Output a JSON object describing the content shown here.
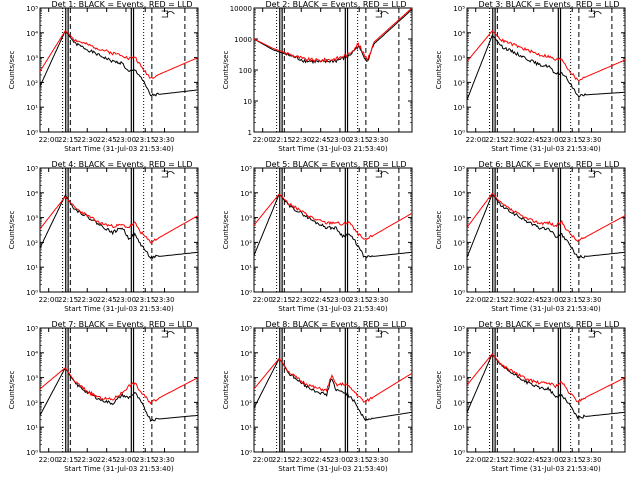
{
  "chart_data": [
    {
      "type": "line",
      "title": "Det 1: BLACK = Events, RED = LLD",
      "ylabel": "Counts/sec",
      "xlabel": "Start Time (31-Jul-03 21:53:40)",
      "x_ticks": [
        "22:00",
        "22:15",
        "22:30",
        "22:45",
        "23:00",
        "23:15",
        "23:30"
      ],
      "y_ticks": [
        "10⁰",
        "10¹",
        "10²",
        "10³",
        "10⁴",
        "10⁵"
      ],
      "ylim": [
        1,
        100000
      ],
      "series": [
        {
          "name": "Events",
          "color": "#000000",
          "shape": "a",
          "level": [
            70,
            12000,
            3800,
            2100,
            1200,
            700,
            600,
            260,
            320,
            160,
            30,
            50
          ]
        },
        {
          "name": "LLD",
          "color": "#ff0000",
          "shape": "a",
          "level": [
            280,
            12000,
            5200,
            3300,
            2200,
            1500,
            1300,
            900,
            1100,
            430,
            150,
            1000
          ]
        }
      ]
    },
    {
      "type": "line",
      "title": "Det 2: BLACK = Events, RED = LLD",
      "ylabel": "Counts/sec",
      "xlabel": "Start Time (31-Jul-03 21:53:40)",
      "x_ticks": [
        "22:00",
        "22:15",
        "22:30",
        "22:45",
        "23:00",
        "23:15",
        "23:30"
      ],
      "y_ticks": [
        "1",
        "10",
        "100",
        "1000",
        "10000"
      ],
      "ylim": [
        1,
        10000
      ],
      "series": [
        {
          "name": "Events",
          "color": "#000000",
          "shape": "b",
          "level": [
            1000,
            450,
            300,
            200,
            180,
            200,
            280,
            600,
            300,
            200,
            700,
            9000
          ]
        },
        {
          "name": "LLD",
          "color": "#ff0000",
          "shape": "b",
          "level": [
            1000,
            500,
            330,
            220,
            200,
            230,
            320,
            700,
            350,
            230,
            800,
            10000
          ]
        }
      ]
    },
    {
      "type": "line",
      "title": "Det 3: BLACK = Events, RED = LLD",
      "ylabel": "Counts/sec",
      "xlabel": "Start Time (31-Jul-03 21:53:40)",
      "x_ticks": [
        "22:00",
        "22:15",
        "22:30",
        "22:45",
        "23:00",
        "23:15",
        "23:30"
      ],
      "y_ticks": [
        "10⁰",
        "10¹",
        "10²",
        "10³",
        "10⁴",
        "10⁵"
      ],
      "ylim": [
        1,
        100000
      ],
      "series": [
        {
          "name": "Events",
          "color": "#000000",
          "shape": "a",
          "level": [
            20,
            8000,
            2800,
            1600,
            900,
            500,
            450,
            200,
            250,
            120,
            30,
            40
          ]
        },
        {
          "name": "LLD",
          "color": "#ff0000",
          "shape": "a",
          "level": [
            700,
            12000,
            5000,
            3200,
            2000,
            1300,
            1100,
            800,
            900,
            350,
            120,
            800
          ]
        }
      ]
    },
    {
      "type": "line",
      "title": "Det 4: BLACK = Events, RED = LLD",
      "ylabel": "Counts/sec",
      "xlabel": "Start Time (31-Jul-03 21:53:40)",
      "x_ticks": [
        "22:00",
        "22:15",
        "22:30",
        "22:45",
        "23:00",
        "23:15",
        "23:30"
      ],
      "y_ticks": [
        "10⁰",
        "10¹",
        "10²",
        "10³",
        "10⁴",
        "10⁵"
      ],
      "ylim": [
        1,
        100000
      ],
      "series": [
        {
          "name": "Events",
          "color": "#000000",
          "shape": "a",
          "level": [
            60,
            8000,
            2200,
            1100,
            500,
            250,
            400,
            150,
            200,
            80,
            25,
            40
          ]
        },
        {
          "name": "LLD",
          "color": "#ff0000",
          "shape": "a",
          "level": [
            350,
            7000,
            2500,
            1200,
            600,
            450,
            500,
            400,
            600,
            250,
            100,
            1200
          ]
        }
      ]
    },
    {
      "type": "line",
      "title": "Det 5: BLACK = Events, RED = LLD",
      "ylabel": "Counts/sec",
      "xlabel": "Start Time (31-Jul-03 21:53:40)",
      "x_ticks": [
        "22:00",
        "22:15",
        "22:30",
        "22:45",
        "23:00",
        "23:15",
        "23:30"
      ],
      "y_ticks": [
        "10⁰",
        "10¹",
        "10²",
        "10³",
        "10⁴",
        "10⁵"
      ],
      "ylim": [
        1,
        100000
      ],
      "series": [
        {
          "name": "Events",
          "color": "#000000",
          "shape": "a",
          "level": [
            30,
            9000,
            3000,
            1500,
            700,
            400,
            380,
            180,
            220,
            110,
            25,
            40
          ]
        },
        {
          "name": "LLD",
          "color": "#ff0000",
          "shape": "a",
          "level": [
            500,
            9000,
            3600,
            1800,
            900,
            600,
            650,
            500,
            700,
            300,
            120,
            1500
          ]
        }
      ]
    },
    {
      "type": "line",
      "title": "Det 6: BLACK = Events, RED = LLD",
      "ylabel": "Counts/sec",
      "xlabel": "Start Time (31-Jul-03 21:53:40)",
      "x_ticks": [
        "22:00",
        "22:15",
        "22:30",
        "22:45",
        "23:00",
        "23:15",
        "23:30"
      ],
      "y_ticks": [
        "10⁰",
        "10¹",
        "10²",
        "10³",
        "10⁴",
        "10⁵"
      ],
      "ylim": [
        1,
        100000
      ],
      "series": [
        {
          "name": "Events",
          "color": "#000000",
          "shape": "a",
          "level": [
            25,
            9000,
            2800,
            1400,
            700,
            380,
            350,
            170,
            200,
            100,
            25,
            40
          ]
        },
        {
          "name": "LLD",
          "color": "#ff0000",
          "shape": "a",
          "level": [
            400,
            9500,
            3500,
            1700,
            900,
            600,
            620,
            450,
            650,
            280,
            110,
            1200
          ]
        }
      ]
    },
    {
      "type": "line",
      "title": "Det 7: BLACK = Events, RED = LLD",
      "ylabel": "Counts/sec",
      "xlabel": "Start Time (31-Jul-03 21:53:40)",
      "x_ticks": [
        "22:00",
        "22:15",
        "22:30",
        "22:45",
        "23:00",
        "23:15",
        "23:30"
      ],
      "y_ticks": [
        "10⁰",
        "10¹",
        "10²",
        "10³",
        "10⁴",
        "10⁵"
      ],
      "ylim": [
        1,
        100000
      ],
      "series": [
        {
          "name": "Events",
          "color": "#000000",
          "shape": "a",
          "level": [
            30,
            2500,
            600,
            250,
            130,
            90,
            200,
            150,
            250,
            100,
            20,
            30
          ]
        },
        {
          "name": "LLD",
          "color": "#ff0000",
          "shape": "a",
          "level": [
            350,
            2500,
            700,
            280,
            150,
            130,
            250,
            450,
            600,
            250,
            100,
            1000
          ]
        }
      ]
    },
    {
      "type": "line",
      "title": "Det 8: BLACK = Events, RED = LLD",
      "ylabel": "Counts/sec",
      "xlabel": "Start Time (31-Jul-03 21:53:40)",
      "x_ticks": [
        "22:00",
        "22:15",
        "22:30",
        "22:45",
        "23:00",
        "23:15",
        "23:30"
      ],
      "y_ticks": [
        "10⁰",
        "10¹",
        "10²",
        "10³",
        "10⁴",
        "10⁵"
      ],
      "ylim": [
        1,
        100000
      ],
      "series": [
        {
          "name": "Events",
          "color": "#000000",
          "shape": "c",
          "level": [
            60,
            6000,
            1500,
            600,
            300,
            200,
            1000,
            300,
            250,
            100,
            20,
            40
          ]
        },
        {
          "name": "LLD",
          "color": "#ff0000",
          "shape": "c",
          "level": [
            350,
            6000,
            1700,
            700,
            400,
            300,
            1200,
            500,
            550,
            250,
            100,
            1500
          ]
        }
      ]
    },
    {
      "type": "line",
      "title": "Det 9: BLACK = Events, RED = LLD",
      "ylabel": "Counts/sec",
      "xlabel": "Start Time (31-Jul-03 21:53:40)",
      "x_ticks": [
        "22:00",
        "22:15",
        "22:30",
        "22:45",
        "23:00",
        "23:15",
        "23:30"
      ],
      "y_ticks": [
        "10⁰",
        "10¹",
        "10²",
        "10³",
        "10⁴",
        "10⁵"
      ],
      "ylim": [
        1,
        100000
      ],
      "series": [
        {
          "name": "Events",
          "color": "#000000",
          "shape": "a",
          "level": [
            40,
            9000,
            2800,
            1300,
            650,
            380,
            350,
            160,
            200,
            100,
            25,
            40
          ]
        },
        {
          "name": "LLD",
          "color": "#ff0000",
          "shape": "a",
          "level": [
            500,
            9000,
            3200,
            1600,
            850,
            600,
            600,
            450,
            650,
            280,
            110,
            1000
          ]
        }
      ]
    }
  ]
}
